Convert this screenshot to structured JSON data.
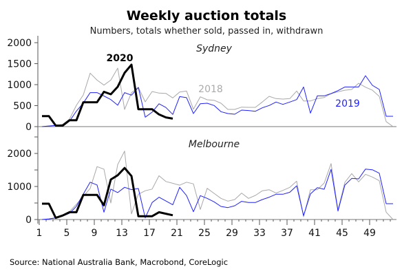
{
  "chart_data": [
    {
      "type": "line",
      "title": "Weekly auction totals",
      "subtitle": "Numbers, totals whether sold, passed in, withdrawn",
      "panel_label": "Sydney",
      "x_label": "",
      "y_label": "",
      "ylim": [
        0,
        2000
      ],
      "y_ticks": [
        "0",
        "500",
        "1000",
        "1500",
        "2000"
      ],
      "series": [
        {
          "name": "2018",
          "color": "#a8a8a8",
          "values": [
            0,
            16,
            27,
            55,
            180,
            508,
            754,
            1273,
            1109,
            989,
            1109,
            1393,
            410,
            809,
            934,
            590,
            836,
            798,
            792,
            683,
            825,
            847,
            415,
            710,
            639,
            628,
            557,
            410,
            410,
            464,
            459,
            459,
            585,
            721,
            667,
            656,
            667,
            847,
            612,
            612,
            667,
            694,
            787,
            830,
            868,
            885,
            1033,
            940,
            868,
            721,
            120,
            0
          ]
        },
        {
          "name": "2019",
          "color": "#1f1fff",
          "values": [
            0,
            15,
            30,
            40,
            130,
            370,
            560,
            810,
            810,
            730,
            645,
            510,
            810,
            750,
            935,
            225,
            345,
            545,
            455,
            290,
            715,
            690,
            311,
            546,
            557,
            503,
            355,
            311,
            295,
            393,
            383,
            366,
            448,
            503,
            585,
            530,
            585,
            645,
            945,
            322,
            732,
            732,
            787,
            858,
            945,
            945,
            945,
            1213,
            984,
            885,
            246,
            246
          ]
        },
        {
          "name": "2020",
          "color": "#000000",
          "values": [
            250,
            250,
            25,
            25,
            150,
            150,
            580,
            580,
            580,
            830,
            770,
            950,
            1280,
            1475,
            415,
            415,
            415,
            290,
            220,
            190
          ]
        }
      ]
    },
    {
      "type": "line",
      "panel_label": "Melbourne",
      "x_label": "",
      "y_label": "",
      "ylim": [
        0,
        2500
      ],
      "y_ticks": [
        "0",
        "1000",
        "2000"
      ],
      "x_ticks": [
        "1",
        "5",
        "9",
        "13",
        "17",
        "21",
        "25",
        "29",
        "33",
        "37",
        "41",
        "45",
        "49"
      ],
      "series": [
        {
          "name": "2018",
          "color": "#a8a8a8",
          "values": [
            0,
            20,
            50,
            100,
            240,
            460,
            700,
            940,
            1600,
            1525,
            500,
            1665,
            2070,
            170,
            765,
            870,
            920,
            1325,
            1150,
            1095,
            1040,
            1130,
            1080,
            305,
            944,
            792,
            639,
            556,
            604,
            799,
            639,
            729,
            868,
            903,
            799,
            882,
            972,
            1160,
            83,
            903,
            903,
            1104,
            1694,
            292,
            1125,
            1389,
            1139,
            1368,
            1285,
            1174,
            222,
            0
          ]
        },
        {
          "name": "2019",
          "color": "#1f1fff",
          "values": [
            0,
            14,
            50,
            100,
            190,
            400,
            770,
            1130,
            1045,
            220,
            920,
            815,
            975,
            905,
            940,
            50,
            515,
            675,
            560,
            445,
            975,
            725,
            236,
            722,
            639,
            535,
            396,
            361,
            417,
            549,
            514,
            514,
            604,
            674,
            764,
            764,
            826,
            1021,
            118,
            778,
            965,
            917,
            1521,
            257,
            1042,
            1243,
            1229,
            1528,
            1507,
            1403,
            479,
            479
          ]
        },
        {
          "name": "2020",
          "color": "#000000",
          "values": [
            480,
            480,
            50,
            120,
            220,
            220,
            745,
            745,
            745,
            430,
            1210,
            1340,
            1560,
            1317,
            100,
            100,
            100,
            220,
            175,
            130
          ]
        }
      ]
    }
  ],
  "source": "Source: National Australia Bank, Macrobond, CoreLogic"
}
